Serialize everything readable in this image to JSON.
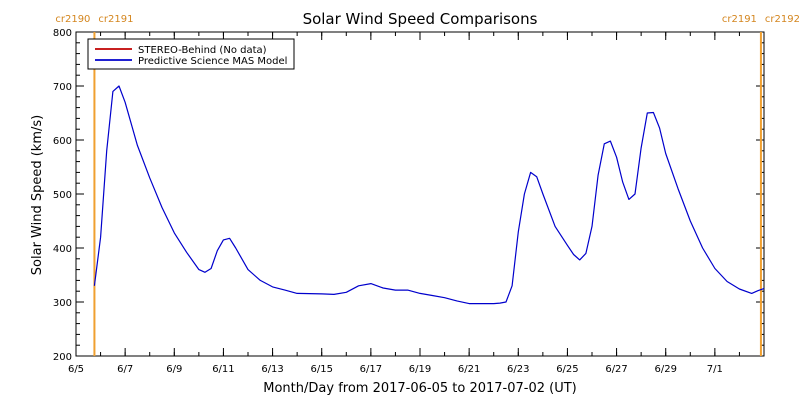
{
  "chart_data": {
    "type": "line",
    "title": "Solar Wind Speed Comparisons",
    "xlabel": "Month/Day from 2017-06-05 to 2017-07-02 (UT)",
    "ylabel": "Solar Wind Speed (km/s)",
    "ylim": [
      200,
      800
    ],
    "xlim": [
      "2017-06-05",
      "2017-07-03"
    ],
    "yticks": [
      200,
      300,
      400,
      500,
      600,
      700,
      800
    ],
    "xticks": [
      {
        "date": "2017-06-05",
        "label": "6/5"
      },
      {
        "date": "2017-06-07",
        "label": "6/7"
      },
      {
        "date": "2017-06-09",
        "label": "6/9"
      },
      {
        "date": "2017-06-11",
        "label": "6/11"
      },
      {
        "date": "2017-06-13",
        "label": "6/13"
      },
      {
        "date": "2017-06-15",
        "label": "6/15"
      },
      {
        "date": "2017-06-17",
        "label": "6/17"
      },
      {
        "date": "2017-06-19",
        "label": "6/19"
      },
      {
        "date": "2017-06-21",
        "label": "6/21"
      },
      {
        "date": "2017-06-23",
        "label": "6/23"
      },
      {
        "date": "2017-06-25",
        "label": "6/25"
      },
      {
        "date": "2017-06-27",
        "label": "6/27"
      },
      {
        "date": "2017-06-29",
        "label": "6/29"
      },
      {
        "date": "2017-07-01",
        "label": "7/1"
      }
    ],
    "legend_position": "top-left",
    "series": [
      {
        "name": "STEREO-Behind (No data)",
        "color": "#c00000",
        "points": []
      },
      {
        "name": "Predictive Science MAS Model",
        "color": "#0000cc",
        "points": [
          [
            "2017-06-05T18:00",
            330
          ],
          [
            "2017-06-06T00:00",
            420
          ],
          [
            "2017-06-06T06:00",
            580
          ],
          [
            "2017-06-06T12:00",
            690
          ],
          [
            "2017-06-06T18:00",
            700
          ],
          [
            "2017-06-07T00:00",
            670
          ],
          [
            "2017-06-07T12:00",
            590
          ],
          [
            "2017-06-08T00:00",
            530
          ],
          [
            "2017-06-08T12:00",
            475
          ],
          [
            "2017-06-09T00:00",
            428
          ],
          [
            "2017-06-09T12:00",
            392
          ],
          [
            "2017-06-10T00:00",
            360
          ],
          [
            "2017-06-10T06:00",
            355
          ],
          [
            "2017-06-10T12:00",
            362
          ],
          [
            "2017-06-10T18:00",
            395
          ],
          [
            "2017-06-11T00:00",
            415
          ],
          [
            "2017-06-11T06:00",
            418
          ],
          [
            "2017-06-11T12:00",
            400
          ],
          [
            "2017-06-12T00:00",
            360
          ],
          [
            "2017-06-12T12:00",
            340
          ],
          [
            "2017-06-13T00:00",
            328
          ],
          [
            "2017-06-13T12:00",
            322
          ],
          [
            "2017-06-14T00:00",
            316
          ],
          [
            "2017-06-15T00:00",
            315
          ],
          [
            "2017-06-15T12:00",
            314
          ],
          [
            "2017-06-16T00:00",
            318
          ],
          [
            "2017-06-16T12:00",
            330
          ],
          [
            "2017-06-17T00:00",
            334
          ],
          [
            "2017-06-17T12:00",
            326
          ],
          [
            "2017-06-18T00:00",
            322
          ],
          [
            "2017-06-18T12:00",
            322
          ],
          [
            "2017-06-19T00:00",
            316
          ],
          [
            "2017-06-19T12:00",
            312
          ],
          [
            "2017-06-20T00:00",
            308
          ],
          [
            "2017-06-20T12:00",
            302
          ],
          [
            "2017-06-21T00:00",
            297
          ],
          [
            "2017-06-22T00:00",
            297
          ],
          [
            "2017-06-22T06:00",
            298
          ],
          [
            "2017-06-22T12:00",
            300
          ],
          [
            "2017-06-22T18:00",
            330
          ],
          [
            "2017-06-23T00:00",
            430
          ],
          [
            "2017-06-23T06:00",
            500
          ],
          [
            "2017-06-23T12:00",
            540
          ],
          [
            "2017-06-23T18:00",
            532
          ],
          [
            "2017-06-24T00:00",
            500
          ],
          [
            "2017-06-24T12:00",
            440
          ],
          [
            "2017-06-25T00:00",
            405
          ],
          [
            "2017-06-25T06:00",
            388
          ],
          [
            "2017-06-25T12:00",
            378
          ],
          [
            "2017-06-25T18:00",
            390
          ],
          [
            "2017-06-26T00:00",
            440
          ],
          [
            "2017-06-26T06:00",
            535
          ],
          [
            "2017-06-26T12:00",
            593
          ],
          [
            "2017-06-26T18:00",
            598
          ],
          [
            "2017-06-27T00:00",
            568
          ],
          [
            "2017-06-27T06:00",
            522
          ],
          [
            "2017-06-27T12:00",
            490
          ],
          [
            "2017-06-27T18:00",
            500
          ],
          [
            "2017-06-28T00:00",
            585
          ],
          [
            "2017-06-28T06:00",
            650
          ],
          [
            "2017-06-28T12:00",
            651
          ],
          [
            "2017-06-28T18:00",
            622
          ],
          [
            "2017-06-29T00:00",
            575
          ],
          [
            "2017-06-29T12:00",
            510
          ],
          [
            "2017-06-30T00:00",
            450
          ],
          [
            "2017-06-30T12:00",
            400
          ],
          [
            "2017-07-01T00:00",
            362
          ],
          [
            "2017-07-01T12:00",
            338
          ],
          [
            "2017-07-02T00:00",
            324
          ],
          [
            "2017-07-02T12:00",
            316
          ],
          [
            "2017-07-02T18:00",
            321
          ],
          [
            "2017-07-03T00:00",
            325
          ]
        ]
      }
    ],
    "carrington_markers": [
      {
        "date": "2017-06-05T18:00",
        "labels": [
          "cr2190",
          "cr2191"
        ],
        "color": "#f0a030"
      },
      {
        "date": "2017-07-02T21:00",
        "labels": [
          "cr2191",
          "cr2192"
        ],
        "color": "#f0a030"
      }
    ],
    "grid": false
  }
}
